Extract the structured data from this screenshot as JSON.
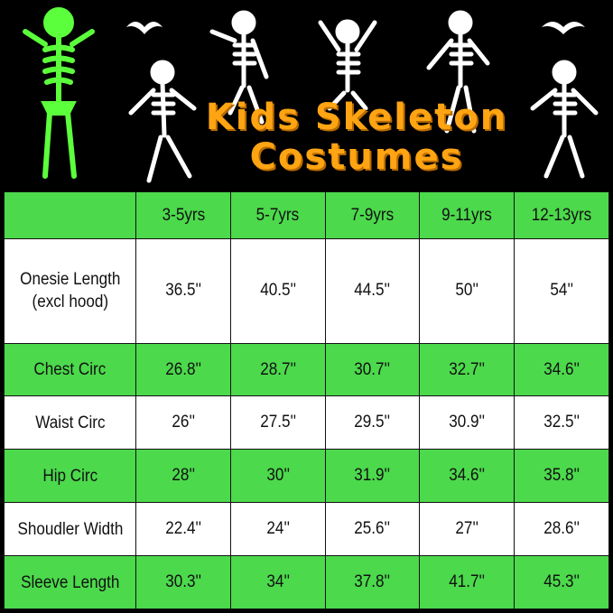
{
  "banner": {
    "title_line1": "Kids Skeleton",
    "title_line2": "Costumes",
    "title_color": "#ffa412",
    "icons": [
      "glowing-skeleton-icon",
      "dancing-skeleton-icon",
      "bat-icon"
    ]
  },
  "table": {
    "header_color": "#4cd94c",
    "columns": [
      "",
      "3-5yrs",
      "5-7yrs",
      "7-9yrs",
      "9-11yrs",
      "12-13yrs"
    ],
    "rows": [
      {
        "label": "Onesie Length (excl hood)",
        "values": [
          "36.5''",
          "40.5''",
          "44.5''",
          "50''",
          "54''"
        ]
      },
      {
        "label": "Chest Circ",
        "values": [
          "26.8''",
          "28.7''",
          "30.7''",
          "32.7''",
          "34.6''"
        ]
      },
      {
        "label": "Waist Circ",
        "values": [
          "26''",
          "27.5''",
          "29.5''",
          "30.9''",
          "32.5''"
        ]
      },
      {
        "label": "Hip Circ",
        "values": [
          "28''",
          "30''",
          "31.9''",
          "34.6''",
          "35.8''"
        ]
      },
      {
        "label": "Shoudler Width",
        "values": [
          "22.4''",
          "24''",
          "25.6''",
          "27''",
          "28.6''"
        ]
      },
      {
        "label": "Sleeve Length",
        "values": [
          "30.3''",
          "34''",
          "37.8''",
          "41.7''",
          "45.3''"
        ]
      }
    ]
  }
}
